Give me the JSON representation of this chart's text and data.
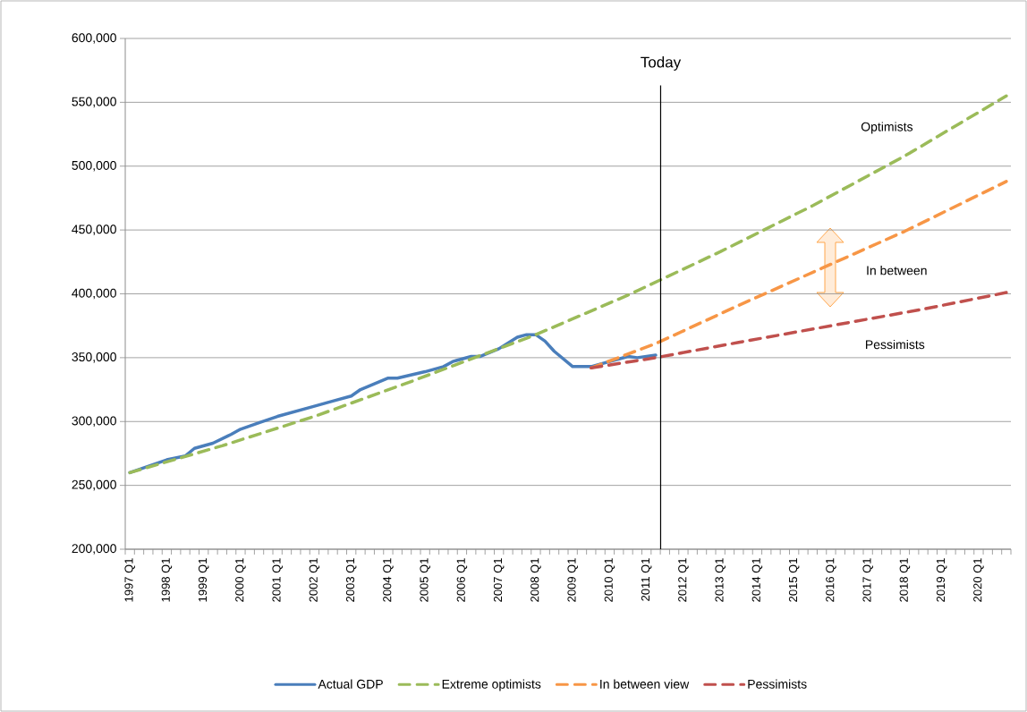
{
  "chart_data": {
    "type": "line",
    "categories": [
      "1997 Q1",
      null,
      null,
      null,
      "1998 Q1",
      null,
      null,
      null,
      "1999 Q1",
      null,
      null,
      null,
      "2000 Q1",
      null,
      null,
      null,
      "2001 Q1",
      null,
      null,
      null,
      "2002 Q1",
      null,
      null,
      null,
      "2003 Q1",
      null,
      null,
      null,
      "2004 Q1",
      null,
      null,
      null,
      "2005 Q1",
      null,
      null,
      null,
      "2006 Q1",
      null,
      null,
      null,
      "2007 Q1",
      null,
      null,
      null,
      "2008 Q1",
      null,
      null,
      null,
      "2009 Q1",
      null,
      null,
      null,
      "2010 Q1",
      null,
      null,
      null,
      "2011 Q1",
      null,
      null,
      null,
      "2012 Q1",
      null,
      null,
      null,
      "2013 Q1",
      null,
      null,
      null,
      "2014 Q1",
      null,
      null,
      null,
      "2015 Q1",
      null,
      null,
      null,
      "2016 Q1",
      null,
      null,
      null,
      "2017 Q1",
      null,
      null,
      null,
      "2018 Q1",
      null,
      null,
      null,
      "2019 Q1",
      null,
      null,
      null,
      "2020 Q1",
      null,
      null,
      null
    ],
    "ylim": [
      200000,
      600000
    ],
    "yticks": [
      {
        "value": 200000,
        "label": "200,000"
      },
      {
        "value": 250000,
        "label": "250,000"
      },
      {
        "value": 300000,
        "label": "300,000"
      },
      {
        "value": 350000,
        "label": "350,000"
      },
      {
        "value": 400000,
        "label": "400,000"
      },
      {
        "value": 450000,
        "label": "450,000"
      },
      {
        "value": 500000,
        "label": "500,000"
      },
      {
        "value": 550000,
        "label": "550,000"
      },
      {
        "value": 600000,
        "label": "600,000"
      }
    ],
    "grid": "y",
    "legend": "bottom",
    "series": [
      {
        "name": "Actual GDP",
        "color": "#4a7ebb",
        "line_style": "solid",
        "values": [
          260000,
          null,
          null,
          null,
          270000,
          null,
          273000,
          279000,
          null,
          283000,
          null,
          290000,
          294000,
          null,
          299000,
          null,
          304000,
          null,
          308000,
          null,
          312000,
          null,
          316000,
          null,
          320000,
          325000,
          null,
          null,
          334000,
          334000,
          null,
          null,
          339000,
          null,
          343000,
          347000,
          null,
          351000,
          351000,
          null,
          357000,
          null,
          366000,
          368000,
          368000,
          363000,
          355000,
          null,
          343000,
          null,
          343000,
          null,
          347000,
          null,
          351000,
          350000,
          null,
          352000,
          null,
          null,
          null,
          null,
          null,
          null,
          null,
          null,
          null,
          null,
          null,
          null,
          null,
          null,
          null,
          null,
          null,
          null,
          null,
          null,
          null,
          null,
          null,
          null,
          null,
          null,
          null,
          null,
          null,
          null,
          null,
          null,
          null,
          null,
          null,
          null,
          null,
          null
        ]
      },
      {
        "name": "Extreme optimists",
        "color": "#9bbb59",
        "line_style": "dashed",
        "values": [
          260000,
          null,
          null,
          null,
          null,
          null,
          null,
          null,
          null,
          null,
          281000,
          null,
          null,
          null,
          null,
          null,
          null,
          null,
          null,
          null,
          304000,
          null,
          null,
          null,
          null,
          null,
          null,
          null,
          null,
          null,
          330000,
          null,
          null,
          null,
          null,
          null,
          null,
          null,
          null,
          null,
          null,
          null,
          null,
          null,
          368000,
          null,
          null,
          null,
          null,
          null,
          null,
          null,
          null,
          null,
          399000,
          null,
          null,
          null,
          null,
          null,
          null,
          null,
          null,
          null,
          433000,
          null,
          null,
          null,
          null,
          null,
          null,
          null,
          null,
          null,
          469000,
          null,
          null,
          null,
          null,
          null,
          null,
          null,
          null,
          null,
          508000,
          null,
          null,
          null,
          null,
          null,
          null,
          null,
          null,
          null,
          null,
          555000
        ]
      },
      {
        "name": "In between view",
        "color": "#f79646",
        "line_style": "dashed",
        "values": [
          null,
          null,
          null,
          null,
          null,
          null,
          null,
          null,
          null,
          null,
          null,
          null,
          null,
          null,
          null,
          null,
          null,
          null,
          null,
          null,
          null,
          null,
          null,
          null,
          null,
          null,
          null,
          null,
          null,
          null,
          null,
          null,
          null,
          null,
          null,
          null,
          null,
          null,
          null,
          null,
          null,
          null,
          null,
          null,
          null,
          null,
          null,
          null,
          null,
          null,
          342000,
          null,
          null,
          null,
          null,
          null,
          null,
          361000,
          null,
          null,
          null,
          null,
          null,
          null,
          null,
          null,
          391000,
          null,
          null,
          null,
          null,
          null,
          null,
          null,
          null,
          420000,
          null,
          null,
          null,
          null,
          null,
          null,
          null,
          null,
          449000,
          null,
          null,
          null,
          null,
          null,
          null,
          null,
          null,
          null,
          null,
          488000
        ]
      },
      {
        "name": "Pessimists",
        "color": "#c0504d",
        "line_style": "dashed",
        "values": [
          null,
          null,
          null,
          null,
          null,
          null,
          null,
          null,
          null,
          null,
          null,
          null,
          null,
          null,
          null,
          null,
          null,
          null,
          null,
          null,
          null,
          null,
          null,
          null,
          null,
          null,
          null,
          null,
          null,
          null,
          null,
          null,
          null,
          null,
          null,
          null,
          null,
          null,
          null,
          null,
          null,
          null,
          null,
          null,
          null,
          null,
          null,
          null,
          null,
          null,
          342000,
          null,
          null,
          null,
          null,
          null,
          null,
          350000,
          null,
          null,
          null,
          null,
          null,
          null,
          null,
          null,
          362000,
          null,
          null,
          null,
          null,
          null,
          null,
          null,
          null,
          null,
          375000,
          null,
          null,
          null,
          null,
          null,
          null,
          null,
          null,
          null,
          388000,
          null,
          null,
          null,
          null,
          null,
          null,
          null,
          null,
          401000
        ]
      }
    ],
    "annotations": [
      "Today",
      "Optimists",
      "In between",
      "Pessimists"
    ]
  }
}
